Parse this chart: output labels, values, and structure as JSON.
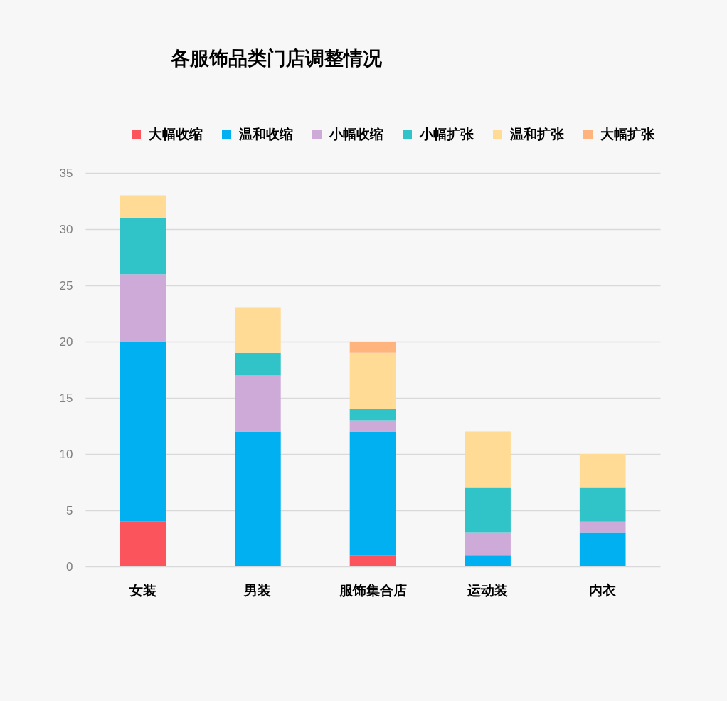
{
  "chart_data": {
    "type": "bar",
    "title": "各服饰品类门店调整情况",
    "stacked": true,
    "categories": [
      "女装",
      "男装",
      "服饰集合店",
      "运动装",
      "内衣"
    ],
    "series": [
      {
        "name": "大幅收缩",
        "color": "#fc545c",
        "values": [
          4,
          0,
          1,
          0,
          0
        ]
      },
      {
        "name": "温和收缩",
        "color": "#00b0f0",
        "values": [
          16,
          12,
          11,
          1,
          3
        ]
      },
      {
        "name": "小幅收缩",
        "color": "#ceaad8",
        "values": [
          6,
          5,
          1,
          2,
          1
        ]
      },
      {
        "name": "小幅扩张",
        "color": "#30c4c8",
        "values": [
          5,
          2,
          1,
          4,
          3
        ]
      },
      {
        "name": "温和扩张",
        "color": "#ffdb96",
        "values": [
          2,
          4,
          5,
          5,
          3
        ]
      },
      {
        "name": "大幅扩张",
        "color": "#ffb47e",
        "values": [
          0,
          0,
          1,
          0,
          0
        ]
      }
    ],
    "ylim": [
      0,
      35
    ],
    "yticks": [
      0,
      5,
      10,
      15,
      20,
      25,
      30,
      35
    ],
    "grid": "y",
    "legend": "top"
  }
}
